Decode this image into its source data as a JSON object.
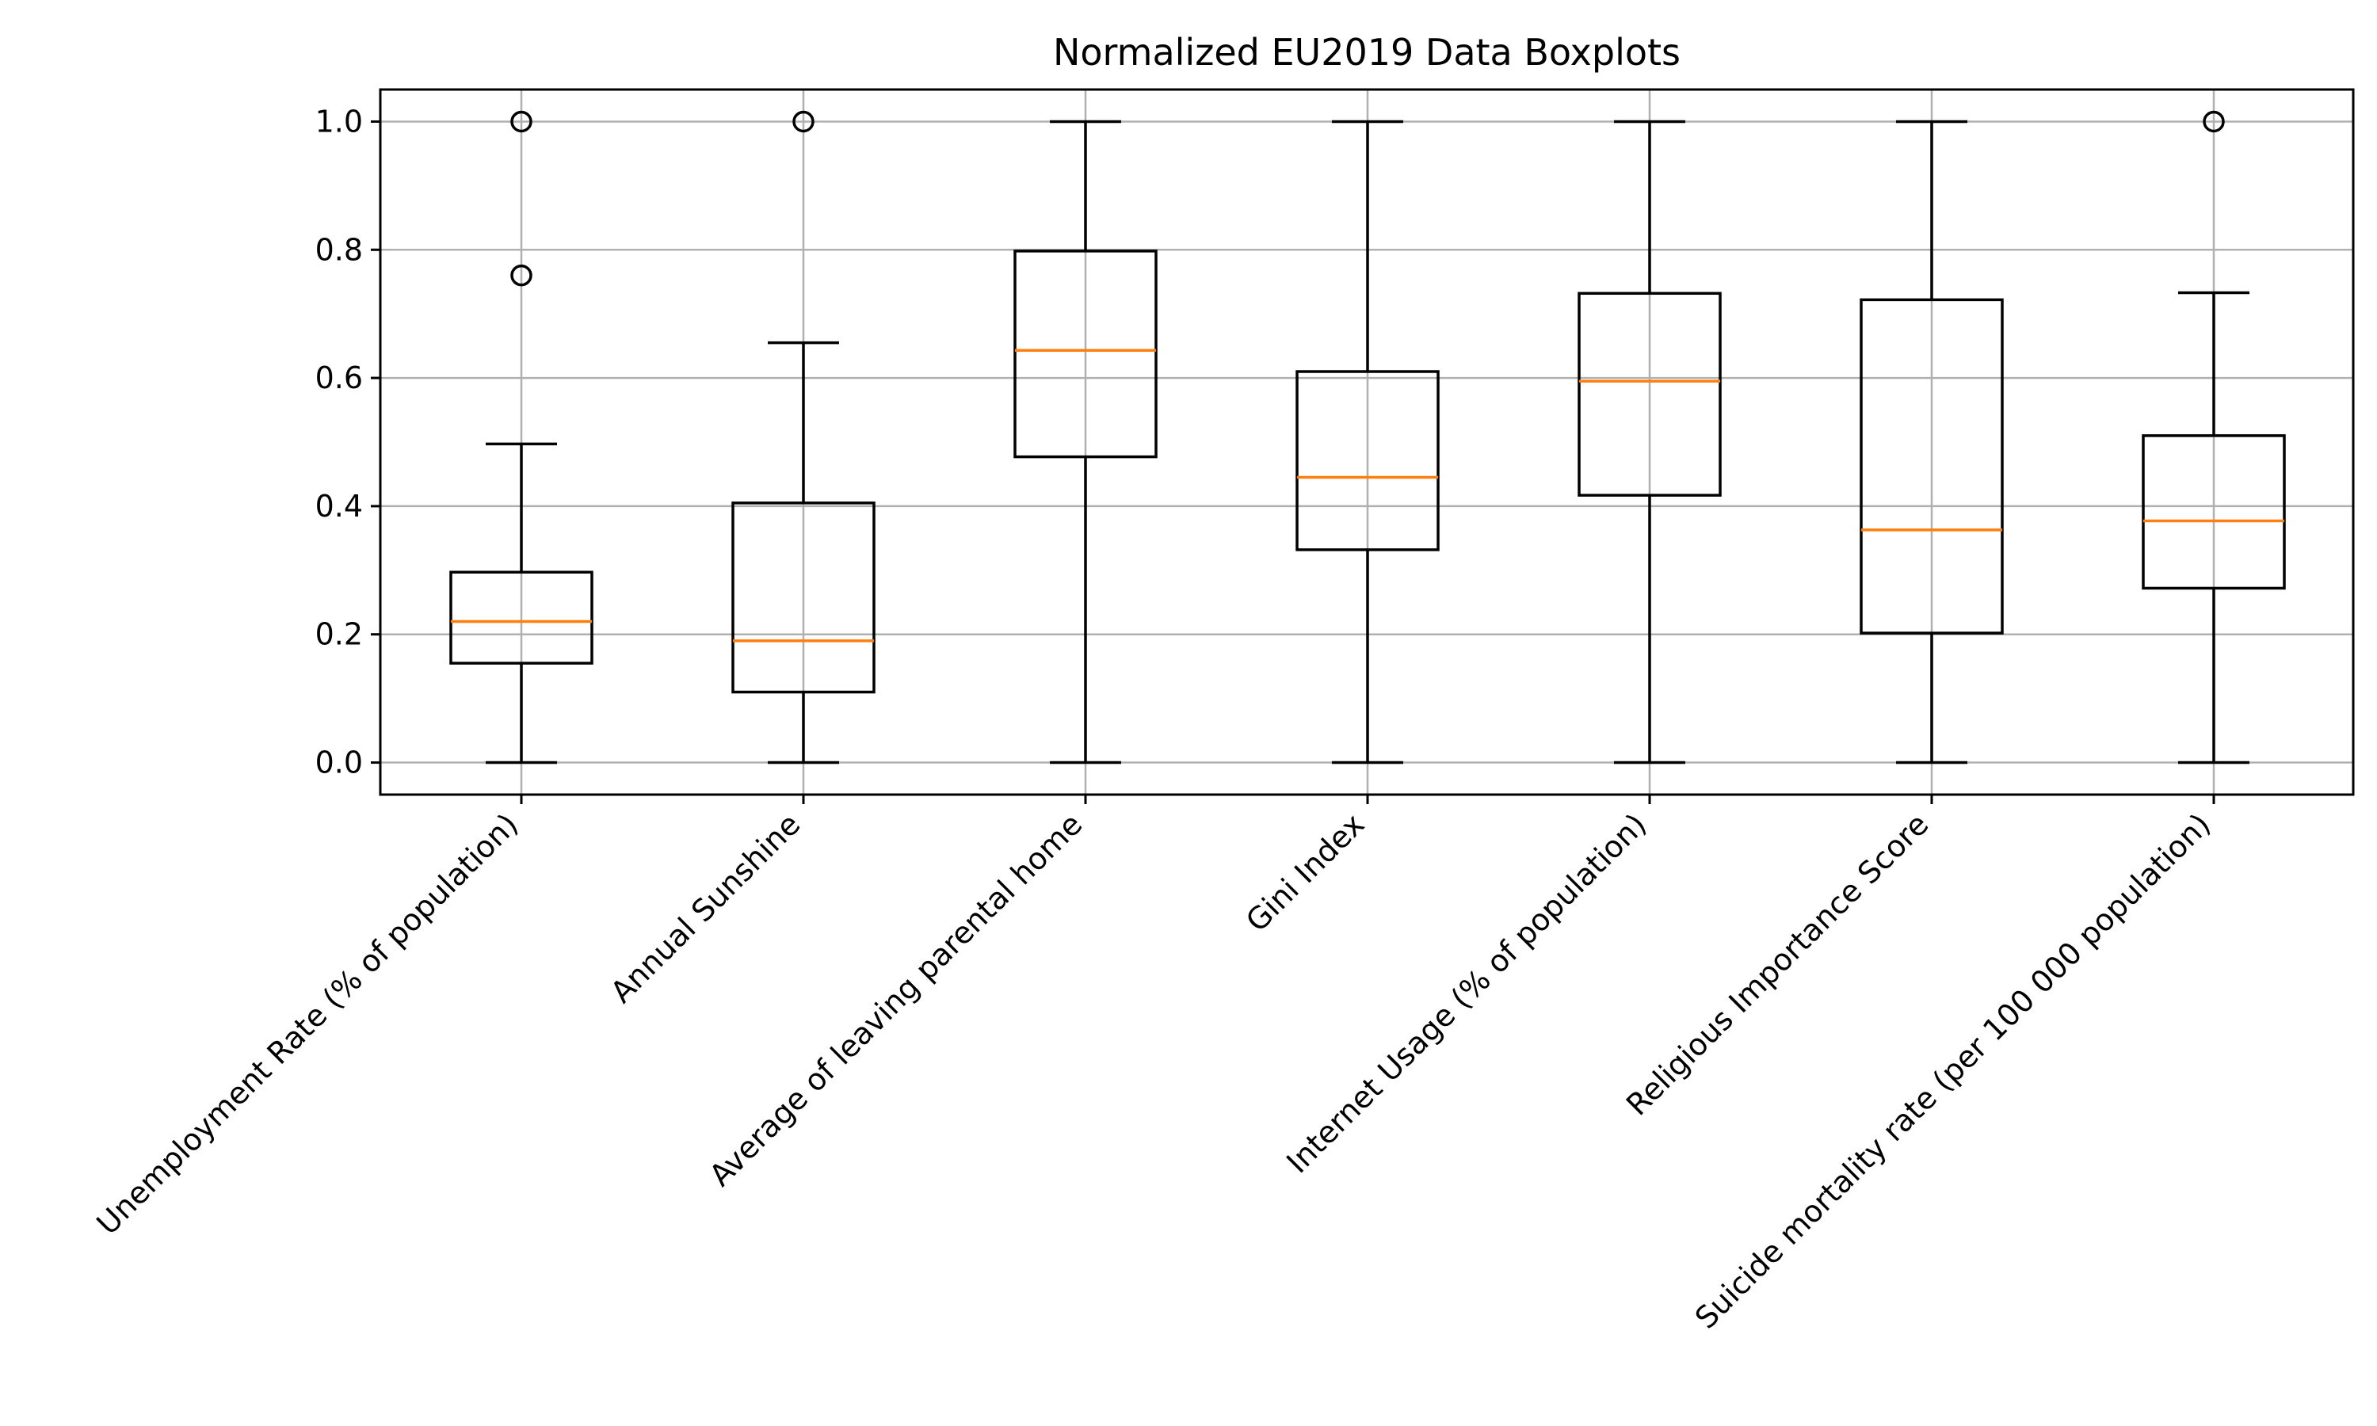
{
  "chart_data": {
    "type": "boxplot",
    "title": "Normalized EU2019 Data Boxplots",
    "xlabel": "",
    "ylabel": "",
    "ylim": [
      -0.05,
      1.05
    ],
    "yticks": [
      0.0,
      0.2,
      0.4,
      0.6,
      0.8,
      1.0
    ],
    "ytick_labels": [
      "0.0",
      "0.2",
      "0.4",
      "0.6",
      "0.8",
      "1.0"
    ],
    "grid": true,
    "legend": "none",
    "colors": {
      "box": "#000000",
      "median": "#ff7f0e",
      "grid": "#b0b0b0"
    },
    "categories": [
      "Unemployment Rate (% of population)",
      "Annual Sunshine",
      "Average of leaving parental home",
      "Gini Index",
      "Internet Usage (% of population)",
      "Religious Importance Score",
      "Suicide mortality rate (per 100 000 population)"
    ],
    "boxes": [
      {
        "whisker_low": 0.0,
        "q1": 0.155,
        "median": 0.22,
        "q3": 0.297,
        "whisker_high": 0.497,
        "outliers": [
          0.76,
          1.0
        ]
      },
      {
        "whisker_low": 0.0,
        "q1": 0.11,
        "median": 0.19,
        "q3": 0.405,
        "whisker_high": 0.655,
        "outliers": [
          1.0
        ]
      },
      {
        "whisker_low": 0.0,
        "q1": 0.477,
        "median": 0.643,
        "q3": 0.798,
        "whisker_high": 1.0,
        "outliers": []
      },
      {
        "whisker_low": 0.0,
        "q1": 0.332,
        "median": 0.445,
        "q3": 0.61,
        "whisker_high": 1.0,
        "outliers": []
      },
      {
        "whisker_low": 0.0,
        "q1": 0.417,
        "median": 0.595,
        "q3": 0.732,
        "whisker_high": 1.0,
        "outliers": []
      },
      {
        "whisker_low": 0.0,
        "q1": 0.202,
        "median": 0.363,
        "q3": 0.722,
        "whisker_high": 1.0,
        "outliers": []
      },
      {
        "whisker_low": 0.0,
        "q1": 0.272,
        "median": 0.377,
        "q3": 0.51,
        "whisker_high": 0.733,
        "outliers": [
          1.0
        ]
      }
    ]
  }
}
